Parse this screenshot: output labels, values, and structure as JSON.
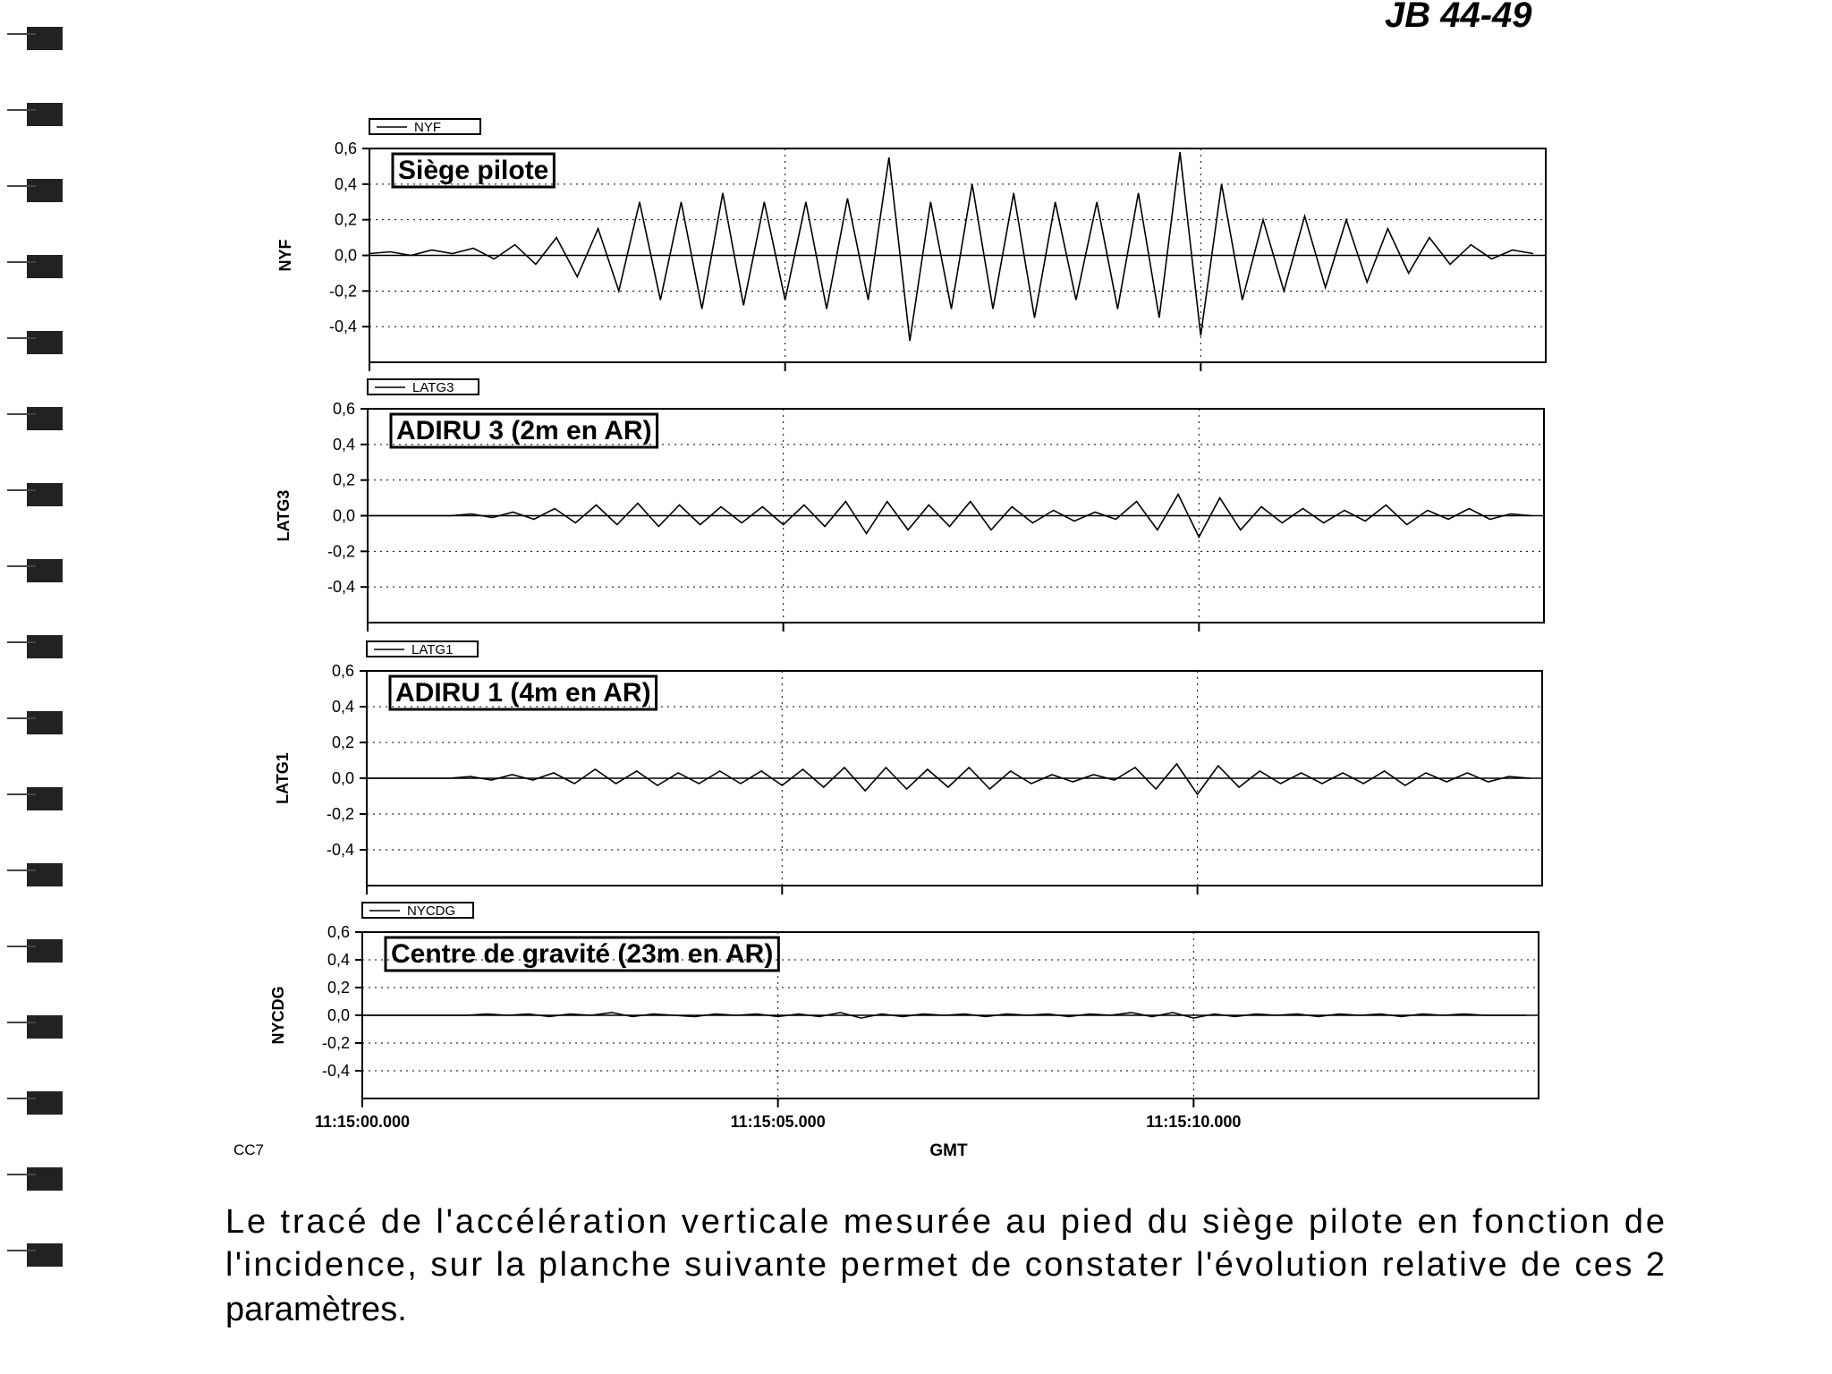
{
  "header": {
    "handwritten": "JB 44-49"
  },
  "chart_data": [
    {
      "type": "line",
      "annotation": "Siège pilote",
      "ylabel": "NYF",
      "x": [
        0,
        0.25,
        0.5,
        0.75,
        1,
        1.25,
        1.5,
        1.75,
        2,
        2.25,
        2.5,
        2.75,
        3,
        3.25,
        3.5,
        3.75,
        4,
        4.25,
        4.5,
        4.75,
        5,
        5.25,
        5.5,
        5.75,
        6,
        6.25,
        6.5,
        6.75,
        7,
        7.25,
        7.5,
        7.75,
        8,
        8.25,
        8.5,
        8.75,
        9,
        9.25,
        9.5,
        9.75,
        10,
        10.25,
        10.5,
        10.75,
        11,
        11.25,
        11.5,
        11.75,
        12,
        12.25,
        12.5,
        12.75,
        13,
        13.25,
        13.5,
        13.75,
        14
      ],
      "series": [
        {
          "name": "NYF",
          "color": "#000000",
          "values": [
            0.01,
            0.02,
            0.0,
            0.03,
            0.01,
            0.04,
            -0.02,
            0.06,
            -0.05,
            0.1,
            -0.12,
            0.15,
            -0.2,
            0.3,
            -0.25,
            0.3,
            -0.3,
            0.35,
            -0.28,
            0.3,
            -0.25,
            0.3,
            -0.3,
            0.32,
            -0.25,
            0.55,
            -0.48,
            0.3,
            -0.3,
            0.4,
            -0.3,
            0.35,
            -0.35,
            0.3,
            -0.25,
            0.3,
            -0.3,
            0.35,
            -0.35,
            0.58,
            -0.45,
            0.4,
            -0.25,
            0.2,
            -0.2,
            0.22,
            -0.18,
            0.2,
            -0.15,
            0.15,
            -0.1,
            0.1,
            -0.05,
            0.06,
            -0.02,
            0.03,
            0.01
          ]
        }
      ],
      "xlim": [
        0,
        14.15
      ],
      "xticks": [
        0,
        5,
        10
      ],
      "ylim": [
        -0.6,
        0.6
      ],
      "yticks": [
        {
          "value": 0.6,
          "label": "0,6"
        },
        {
          "value": 0.4,
          "label": "0,4"
        },
        {
          "value": 0.2,
          "label": "0,2"
        },
        {
          "value": 0,
          "label": "0,0"
        },
        {
          "value": -0.2,
          "label": "-0,2"
        },
        {
          "value": -0.4,
          "label": "-0,4"
        }
      ],
      "grid": true
    },
    {
      "type": "line",
      "annotation": "ADIRU 3 (2m en AR)",
      "ylabel": "LATG3",
      "x": [
        0,
        0.25,
        0.5,
        0.75,
        1,
        1.25,
        1.5,
        1.75,
        2,
        2.25,
        2.5,
        2.75,
        3,
        3.25,
        3.5,
        3.75,
        4,
        4.25,
        4.5,
        4.75,
        5,
        5.25,
        5.5,
        5.75,
        6,
        6.25,
        6.5,
        6.75,
        7,
        7.25,
        7.5,
        7.75,
        8,
        8.25,
        8.5,
        8.75,
        9,
        9.25,
        9.5,
        9.75,
        10,
        10.25,
        10.5,
        10.75,
        11,
        11.25,
        11.5,
        11.75,
        12,
        12.25,
        12.5,
        12.75,
        13,
        13.25,
        13.5,
        13.75,
        14
      ],
      "series": [
        {
          "name": "LATG3",
          "color": "#000000",
          "values": [
            0,
            0,
            0,
            0,
            0,
            0.01,
            -0.01,
            0.02,
            -0.02,
            0.04,
            -0.04,
            0.06,
            -0.05,
            0.07,
            -0.06,
            0.06,
            -0.05,
            0.05,
            -0.04,
            0.05,
            -0.05,
            0.06,
            -0.06,
            0.08,
            -0.1,
            0.08,
            -0.08,
            0.06,
            -0.06,
            0.08,
            -0.08,
            0.05,
            -0.04,
            0.03,
            -0.03,
            0.02,
            -0.02,
            0.08,
            -0.08,
            0.12,
            -0.12,
            0.1,
            -0.08,
            0.05,
            -0.04,
            0.04,
            -0.04,
            0.03,
            -0.03,
            0.06,
            -0.05,
            0.03,
            -0.02,
            0.04,
            -0.02,
            0.01,
            0
          ]
        }
      ],
      "xlim": [
        0,
        14.15
      ],
      "xticks": [
        0,
        5,
        10
      ],
      "ylim": [
        -0.6,
        0.6
      ],
      "yticks": [
        {
          "value": 0.6,
          "label": "0,6"
        },
        {
          "value": 0.4,
          "label": "0,4"
        },
        {
          "value": 0.2,
          "label": "0,2"
        },
        {
          "value": 0,
          "label": "0,0"
        },
        {
          "value": -0.2,
          "label": "-0,2"
        },
        {
          "value": -0.4,
          "label": "-0,4"
        }
      ],
      "grid": true
    },
    {
      "type": "line",
      "annotation": "ADIRU 1 (4m en AR)",
      "ylabel": "LATG1",
      "x": [
        0,
        0.25,
        0.5,
        0.75,
        1,
        1.25,
        1.5,
        1.75,
        2,
        2.25,
        2.5,
        2.75,
        3,
        3.25,
        3.5,
        3.75,
        4,
        4.25,
        4.5,
        4.75,
        5,
        5.25,
        5.5,
        5.75,
        6,
        6.25,
        6.5,
        6.75,
        7,
        7.25,
        7.5,
        7.75,
        8,
        8.25,
        8.5,
        8.75,
        9,
        9.25,
        9.5,
        9.75,
        10,
        10.25,
        10.5,
        10.75,
        11,
        11.25,
        11.5,
        11.75,
        12,
        12.25,
        12.5,
        12.75,
        13,
        13.25,
        13.5,
        13.75,
        14
      ],
      "series": [
        {
          "name": "LATG1",
          "color": "#000000",
          "values": [
            0,
            0,
            0,
            0,
            0,
            0.01,
            -0.01,
            0.02,
            -0.01,
            0.03,
            -0.03,
            0.05,
            -0.03,
            0.04,
            -0.04,
            0.03,
            -0.03,
            0.04,
            -0.03,
            0.04,
            -0.04,
            0.05,
            -0.05,
            0.06,
            -0.07,
            0.06,
            -0.06,
            0.05,
            -0.05,
            0.06,
            -0.06,
            0.04,
            -0.03,
            0.02,
            -0.02,
            0.02,
            -0.01,
            0.06,
            -0.06,
            0.08,
            -0.09,
            0.07,
            -0.05,
            0.04,
            -0.03,
            0.03,
            -0.03,
            0.03,
            -0.03,
            0.04,
            -0.04,
            0.03,
            -0.02,
            0.03,
            -0.02,
            0.01,
            0
          ]
        }
      ],
      "xlim": [
        0,
        14.15
      ],
      "xticks": [
        0,
        5,
        10
      ],
      "ylim": [
        -0.6,
        0.6
      ],
      "yticks": [
        {
          "value": 0.6,
          "label": "0,6"
        },
        {
          "value": 0.4,
          "label": "0,4"
        },
        {
          "value": 0.2,
          "label": "0,2"
        },
        {
          "value": 0,
          "label": "0,0"
        },
        {
          "value": -0.2,
          "label": "-0,2"
        },
        {
          "value": -0.4,
          "label": "-0,4"
        }
      ],
      "grid": true
    },
    {
      "type": "line",
      "annotation": "Centre de gravité (23m en AR)",
      "ylabel": "NYCDG",
      "xlabel": "GMT",
      "x": [
        0,
        0.25,
        0.5,
        0.75,
        1,
        1.25,
        1.5,
        1.75,
        2,
        2.25,
        2.5,
        2.75,
        3,
        3.25,
        3.5,
        3.75,
        4,
        4.25,
        4.5,
        4.75,
        5,
        5.25,
        5.5,
        5.75,
        6,
        6.25,
        6.5,
        6.75,
        7,
        7.25,
        7.5,
        7.75,
        8,
        8.25,
        8.5,
        8.75,
        9,
        9.25,
        9.5,
        9.75,
        10,
        10.25,
        10.5,
        10.75,
        11,
        11.25,
        11.5,
        11.75,
        12,
        12.25,
        12.5,
        12.75,
        13,
        13.25,
        13.5,
        13.75,
        14
      ],
      "series": [
        {
          "name": "NYCDG",
          "color": "#000000",
          "values": [
            0,
            0,
            0,
            0,
            0,
            0,
            0.01,
            0,
            0.01,
            -0.01,
            0.01,
            0,
            0.02,
            -0.01,
            0.01,
            0,
            -0.01,
            0.01,
            0,
            0.01,
            -0.01,
            0.01,
            -0.01,
            0.02,
            -0.02,
            0.01,
            -0.01,
            0.01,
            0,
            0.01,
            -0.01,
            0.01,
            0,
            0.01,
            -0.01,
            0.01,
            0,
            0.02,
            -0.01,
            0.02,
            -0.02,
            0.01,
            -0.01,
            0.01,
            0,
            0.01,
            -0.01,
            0.01,
            0,
            0.01,
            -0.01,
            0.01,
            0,
            0.01,
            0,
            0,
            0
          ]
        }
      ],
      "xlim": [
        0,
        14.15
      ],
      "xticks": [
        {
          "value": 0,
          "label": "11:15:00.000"
        },
        {
          "value": 5,
          "label": "11:15:05.000"
        },
        {
          "value": 10,
          "label": "11:15:10.000"
        }
      ],
      "ylim": [
        -0.6,
        0.6
      ],
      "yticks": [
        {
          "value": 0.6,
          "label": "0,6"
        },
        {
          "value": 0.4,
          "label": "0,4"
        },
        {
          "value": 0.2,
          "label": "0,2"
        },
        {
          "value": 0,
          "label": "0,0"
        },
        {
          "value": -0.2,
          "label": "-0,2"
        },
        {
          "value": -0.4,
          "label": "-0,4"
        }
      ],
      "grid": true
    }
  ],
  "figure_code": "CC7",
  "paragraph": [
    "Le tracé de l'accélération verticale mesurée au pied du siège pilote en fonction de",
    "l'incidence, sur la planche suivante permet de constater l'évolution relative de ces 2",
    "paramètres."
  ]
}
